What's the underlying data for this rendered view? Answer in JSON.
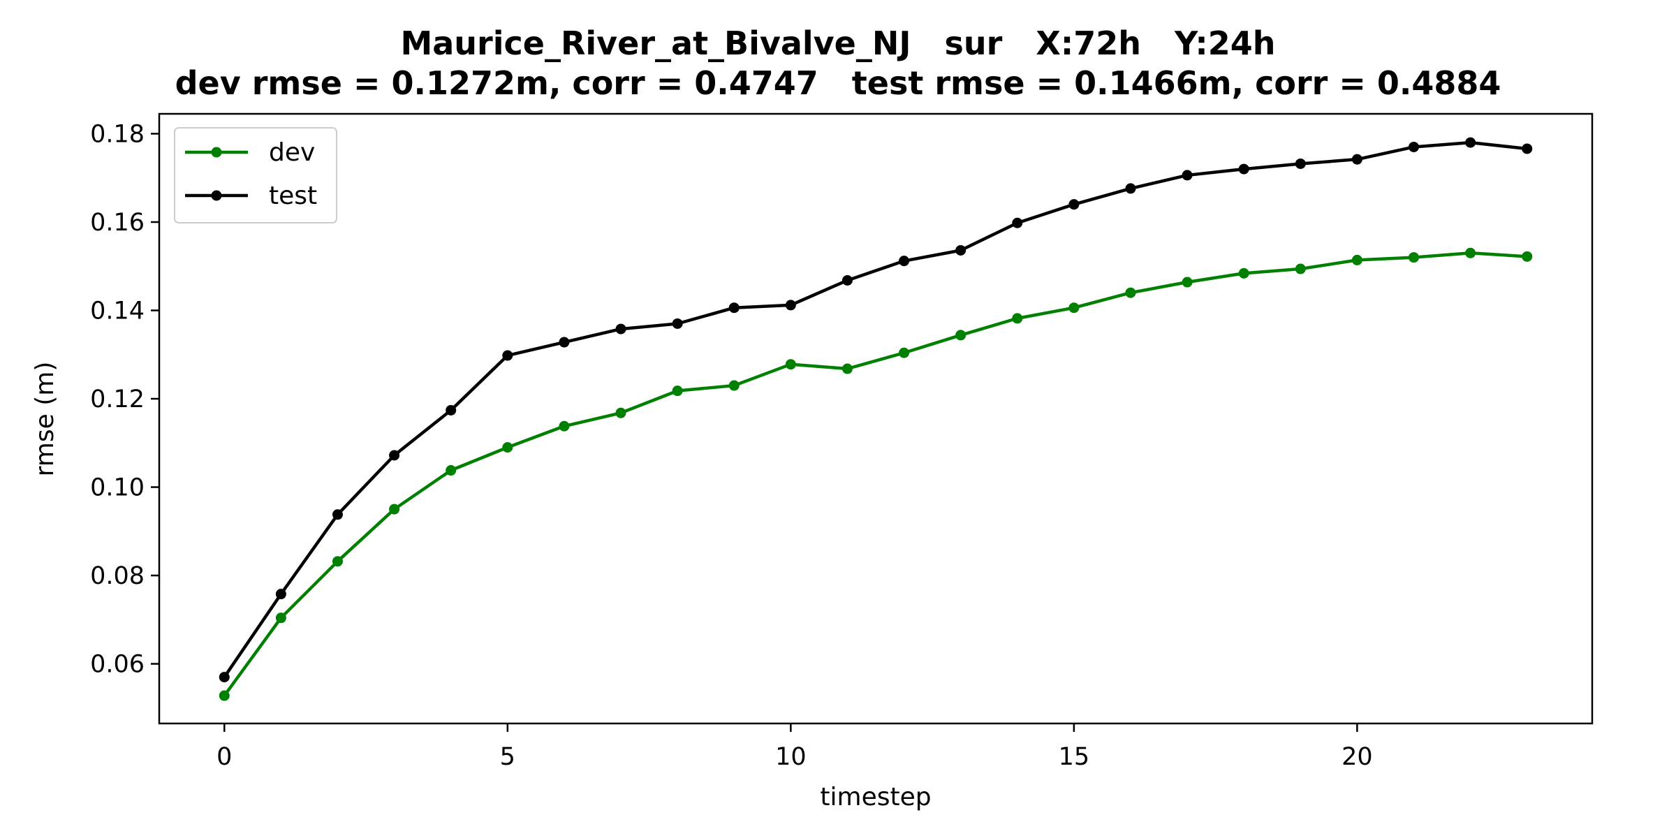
{
  "chart_data": {
    "type": "line",
    "title": "Maurice_River_at_Bivalve_NJ   sur   X:72h   Y:24h",
    "subtitle": "dev rmse = 0.1272m, corr = 0.4747   test rmse = 0.1466m, corr = 0.4884",
    "xlabel": "timestep",
    "ylabel": "rmse (m)",
    "xlim": [
      -1.15,
      24.15
    ],
    "ylim": [
      0.0465,
      0.1845
    ],
    "xticks": [
      0,
      5,
      10,
      15,
      20
    ],
    "xtick_labels": [
      "0",
      "5",
      "10",
      "15",
      "20"
    ],
    "yticks": [
      0.06,
      0.08,
      0.1,
      0.12,
      0.14,
      0.16,
      0.18
    ],
    "ytick_labels": [
      "0.06",
      "0.08",
      "0.10",
      "0.12",
      "0.14",
      "0.16",
      "0.18"
    ],
    "grid": false,
    "legend": "top-left",
    "x": [
      0,
      1,
      2,
      3,
      4,
      5,
      6,
      7,
      8,
      9,
      10,
      11,
      12,
      13,
      14,
      15,
      16,
      17,
      18,
      19,
      20,
      21,
      22,
      23
    ],
    "series": [
      {
        "name": "dev",
        "color": "#008000",
        "values": [
          0.0528,
          0.0704,
          0.0832,
          0.095,
          0.1038,
          0.109,
          0.1138,
          0.1168,
          0.1218,
          0.123,
          0.1278,
          0.1268,
          0.1304,
          0.1344,
          0.1382,
          0.1406,
          0.144,
          0.1464,
          0.1484,
          0.1494,
          0.1514,
          0.152,
          0.153,
          0.1522
        ]
      },
      {
        "name": "test",
        "color": "#000000",
        "values": [
          0.057,
          0.0758,
          0.0938,
          0.1072,
          0.1174,
          0.1298,
          0.1328,
          0.1358,
          0.137,
          0.1406,
          0.1412,
          0.1468,
          0.1512,
          0.1536,
          0.1598,
          0.164,
          0.1676,
          0.1706,
          0.172,
          0.1732,
          0.1742,
          0.177,
          0.178,
          0.1766
        ]
      }
    ]
  }
}
